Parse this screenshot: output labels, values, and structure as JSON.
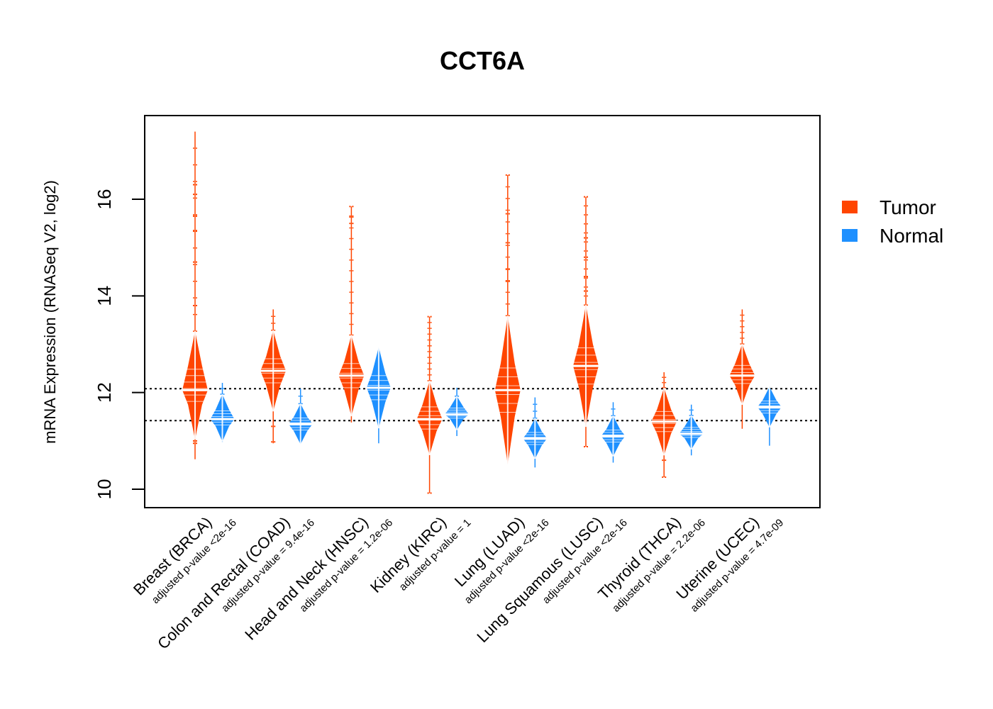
{
  "chart_data": {
    "type": "violin",
    "title": "CCT6A",
    "xlabel": "",
    "ylabel": "mRNA Expression (RNASeq V2, log2)",
    "ylim": [
      9.65,
      17.75
    ],
    "yticks": [
      10,
      12,
      14,
      16
    ],
    "ytick_labels": [
      "10",
      "12",
      "14",
      "16"
    ],
    "grid": false,
    "reference_lines": [
      {
        "style": "dotted",
        "color": "#000000",
        "y": 12.08
      },
      {
        "style": "dotted",
        "color": "#000000",
        "y": 11.42
      }
    ],
    "legend": {
      "position": "right",
      "entries": [
        {
          "label": "Tumor",
          "color": "#FF4500"
        },
        {
          "label": "Normal",
          "color": "#1E90FF"
        }
      ]
    },
    "categories": [
      {
        "label": "Breast (BRCA)",
        "pvalue": "adjusted p-value <2e-16"
      },
      {
        "label": "Colon and Rectal (COAD)",
        "pvalue": "adjusted p-value = 9.4e-16"
      },
      {
        "label": "Head and Neck (HNSC)",
        "pvalue": "adjusted p-value = 1.2e-06"
      },
      {
        "label": "Kidney (KIRC)",
        "pvalue": "adjusted p-value = 1"
      },
      {
        "label": "Lung (LUAD)",
        "pvalue": "adjusted p-value <2e-16"
      },
      {
        "label": "Lung Squamous (LUSC)",
        "pvalue": "adjusted p-value <2e-16"
      },
      {
        "label": "Thyroid (THCA)",
        "pvalue": "adjusted p-value = 2.2e-06"
      },
      {
        "label": "Uterine (UCEC)",
        "pvalue": "adjusted p-value = 4.7e-09"
      }
    ],
    "series": [
      {
        "name": "Tumor",
        "color": "#FF4500",
        "values": [
          {
            "min": 10.62,
            "q1": 11.75,
            "median": 12.05,
            "q3": 12.55,
            "max": 17.4,
            "outliers_high": [
              13.8,
              14.7,
              15.35,
              15.65,
              16.1,
              16.3
            ],
            "outliers_low": [
              10.95,
              11.0
            ]
          },
          {
            "min": 10.95,
            "q1": 12.15,
            "median": 12.45,
            "q3": 12.75,
            "max": 13.72,
            "outliers_high": [],
            "outliers_low": [
              10.98,
              11.3
            ]
          },
          {
            "min": 11.38,
            "q1": 12.05,
            "median": 12.35,
            "q3": 12.65,
            "max": 15.85,
            "outliers_high": [
              15.5,
              15.65,
              15.85
            ],
            "outliers_low": []
          },
          {
            "min": 9.92,
            "q1": 11.2,
            "median": 11.45,
            "q3": 11.75,
            "max": 13.57,
            "outliers_high": [
              13.57
            ],
            "outliers_low": [
              9.92
            ]
          },
          {
            "min": 10.68,
            "q1": 11.5,
            "median": 12.05,
            "q3": 12.6,
            "max": 16.5,
            "outliers_high": [
              14.3,
              14.55,
              15.1,
              15.7,
              16.5
            ],
            "outliers_low": []
          },
          {
            "min": 10.88,
            "q1": 12.1,
            "median": 12.55,
            "q3": 13.0,
            "max": 16.05,
            "outliers_high": [
              14.1,
              14.4,
              14.8,
              15.2,
              16.05
            ],
            "outliers_low": [
              10.88
            ]
          },
          {
            "min": 10.25,
            "q1": 11.15,
            "median": 11.4,
            "q3": 11.65,
            "max": 12.42,
            "outliers_high": [],
            "outliers_low": [
              10.25,
              10.6
            ]
          },
          {
            "min": 11.25,
            "q1": 12.15,
            "median": 12.35,
            "q3": 12.6,
            "max": 13.72,
            "outliers_high": [],
            "outliers_low": []
          }
        ]
      },
      {
        "name": "Normal",
        "color": "#1E90FF",
        "values": [
          {
            "min": 10.98,
            "q1": 11.3,
            "median": 11.45,
            "q3": 11.65,
            "max": 12.2
          },
          {
            "min": 10.95,
            "q1": 11.2,
            "median": 11.35,
            "q3": 11.5,
            "max": 12.08
          },
          {
            "min": 10.95,
            "q1": 11.8,
            "median": 12.1,
            "q3": 12.4,
            "max": 12.8
          },
          {
            "min": 11.1,
            "q1": 11.45,
            "median": 11.55,
            "q3": 11.7,
            "max": 12.1
          },
          {
            "min": 10.45,
            "q1": 10.9,
            "median": 11.05,
            "q3": 11.2,
            "max": 11.9
          },
          {
            "min": 10.55,
            "q1": 10.95,
            "median": 11.1,
            "q3": 11.25,
            "max": 11.8
          },
          {
            "min": 10.7,
            "q1": 11.05,
            "median": 11.15,
            "q3": 11.3,
            "max": 11.75
          },
          {
            "min": 10.9,
            "q1": 11.55,
            "median": 11.7,
            "q3": 11.85,
            "max": 12.12
          }
        ]
      }
    ]
  }
}
